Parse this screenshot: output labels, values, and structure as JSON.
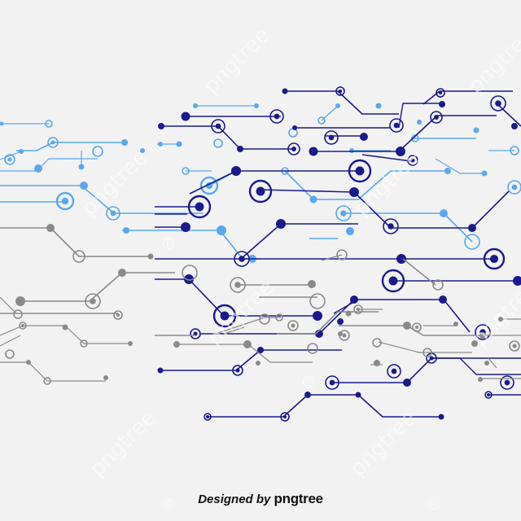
{
  "artwork": {
    "subject": "circuit-board-lines",
    "colors": {
      "background": "#f2f2f2",
      "navy": "#1a1a8c",
      "light_blue": "#5ba7ec",
      "gray": "#8a8a8a"
    }
  },
  "credit": {
    "lead": "Designed by",
    "brand": "pngtree"
  },
  "watermark": {
    "text": "pngtree",
    "symbol": "©"
  }
}
